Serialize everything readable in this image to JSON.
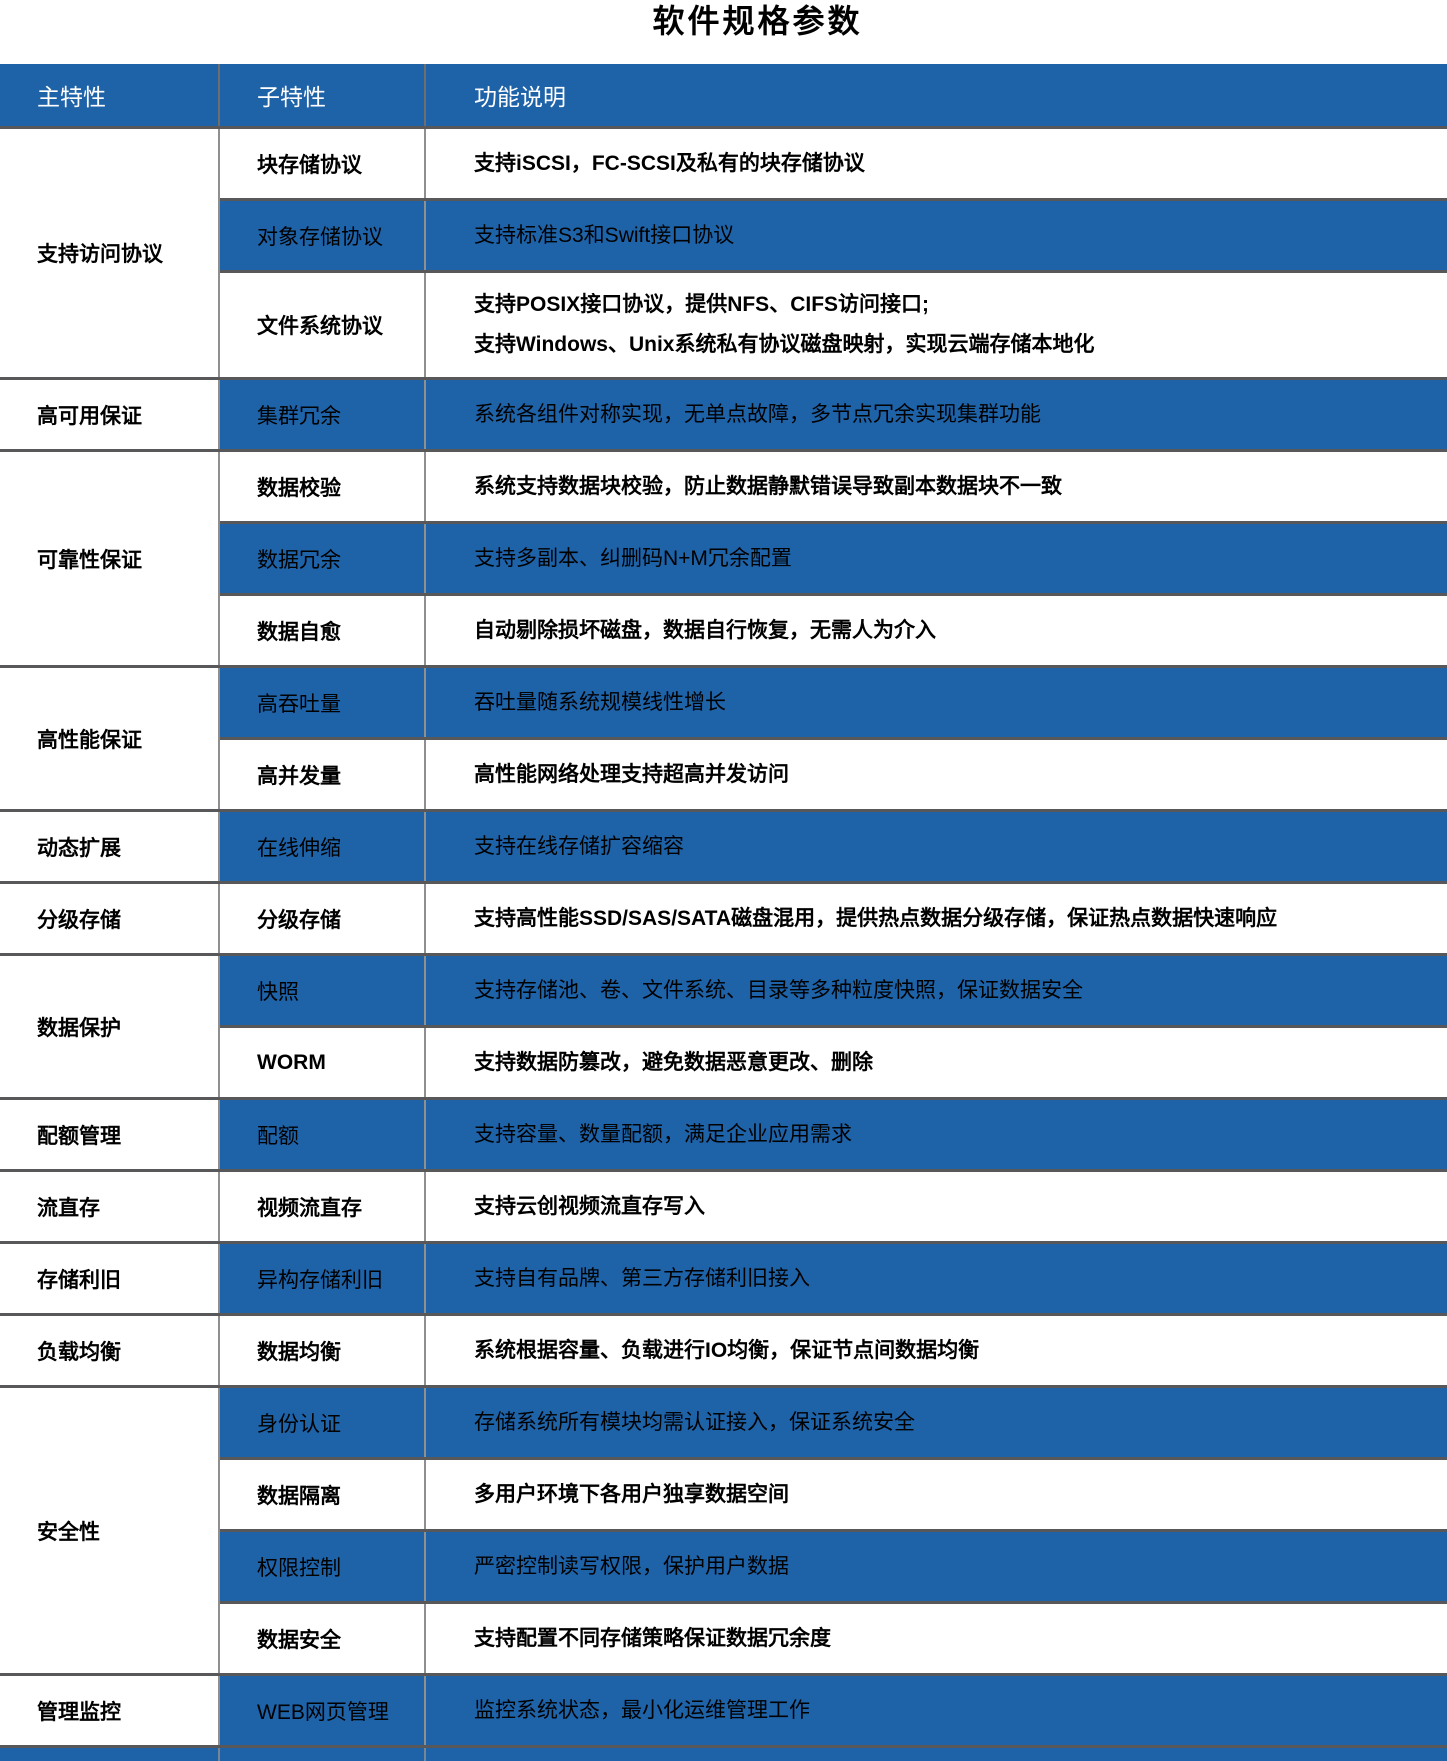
{
  "title": "软件规格参数",
  "colors": {
    "header_bg": "#1E62A8",
    "row_highlight_bg": "#1E62A8",
    "row_plain_bg": "#FFFFFF",
    "header_text": "#FFFFFF",
    "body_text": "#000000",
    "section_divider": "#58585A",
    "column_divider": "#8F8F8F"
  },
  "header": {
    "col_main": "主特性",
    "col_sub": "子特性",
    "col_desc": "功能说明"
  },
  "sections": [
    {
      "main": "支持访问协议",
      "rows": [
        {
          "sub": "块存储协议",
          "highlight": false,
          "desc": [
            "支持iSCSI，FC-SCSI及私有的块存储协议"
          ]
        },
        {
          "sub": "对象存储协议",
          "highlight": true,
          "desc": [
            "支持标准S3和Swift接口协议"
          ]
        },
        {
          "sub": "文件系统协议",
          "highlight": false,
          "desc": [
            "支持POSIX接口协议，提供NFS、CIFS访问接口;",
            "支持Windows、Unix系统私有协议磁盘映射，实现云端存储本地化"
          ]
        }
      ]
    },
    {
      "main": "高可用保证",
      "rows": [
        {
          "sub": "集群冗余",
          "highlight": true,
          "desc": [
            "系统各组件对称实现，无单点故障，多节点冗余实现集群功能"
          ]
        }
      ]
    },
    {
      "main": "可靠性保证",
      "rows": [
        {
          "sub": "数据校验",
          "highlight": false,
          "desc": [
            "系统支持数据块校验，防止数据静默错误导致副本数据块不一致"
          ]
        },
        {
          "sub": "数据冗余",
          "highlight": true,
          "desc": [
            "支持多副本、纠删码N+M冗余配置"
          ]
        },
        {
          "sub": "数据自愈",
          "highlight": false,
          "desc": [
            "自动剔除损坏磁盘，数据自行恢复，无需人为介入"
          ]
        }
      ]
    },
    {
      "main": "高性能保证",
      "rows": [
        {
          "sub": "高吞吐量",
          "highlight": true,
          "desc": [
            "吞吐量随系统规模线性增长"
          ]
        },
        {
          "sub": "高并发量",
          "highlight": false,
          "desc": [
            "高性能网络处理支持超高并发访问"
          ]
        }
      ]
    },
    {
      "main": "动态扩展",
      "rows": [
        {
          "sub": "在线伸缩",
          "highlight": true,
          "desc": [
            "支持在线存储扩容缩容"
          ]
        }
      ]
    },
    {
      "main": "分级存储",
      "rows": [
        {
          "sub": "分级存储",
          "highlight": false,
          "desc": [
            "支持高性能SSD/SAS/SATA磁盘混用，提供热点数据分级存储，保证热点数据快速响应"
          ]
        }
      ]
    },
    {
      "main": "数据保护",
      "rows": [
        {
          "sub": "快照",
          "highlight": true,
          "desc": [
            "支持存储池、卷、文件系统、目录等多种粒度快照，保证数据安全"
          ]
        },
        {
          "sub": "WORM",
          "highlight": false,
          "desc": [
            "支持数据防篡改，避免数据恶意更改、删除"
          ]
        }
      ]
    },
    {
      "main": "配额管理",
      "rows": [
        {
          "sub": "配额",
          "highlight": true,
          "desc": [
            "支持容量、数量配额，满足企业应用需求"
          ]
        }
      ]
    },
    {
      "main": "流直存",
      "rows": [
        {
          "sub": "视频流直存",
          "highlight": false,
          "desc": [
            "支持云创视频流直存写入"
          ]
        }
      ]
    },
    {
      "main": "存储利旧",
      "rows": [
        {
          "sub": "异构存储利旧",
          "highlight": true,
          "desc": [
            "支持自有品牌、第三方存储利旧接入"
          ]
        }
      ]
    },
    {
      "main": "负载均衡",
      "rows": [
        {
          "sub": "数据均衡",
          "highlight": false,
          "desc": [
            "系统根据容量、负载进行IO均衡，保证节点间数据均衡"
          ]
        }
      ]
    },
    {
      "main": "安全性",
      "rows": [
        {
          "sub": "身份认证",
          "highlight": true,
          "desc": [
            "存储系统所有模块均需认证接入，保证系统安全"
          ]
        },
        {
          "sub": "数据隔离",
          "highlight": false,
          "desc": [
            "多用户环境下各用户独享数据空间"
          ]
        },
        {
          "sub": "权限控制",
          "highlight": true,
          "desc": [
            "严密控制读写权限，保护用户数据"
          ]
        },
        {
          "sub": "数据安全",
          "highlight": false,
          "desc": [
            "支持配置不同存储策略保证数据冗余度"
          ]
        }
      ]
    },
    {
      "main": "管理监控",
      "rows": [
        {
          "sub": "WEB网页管理",
          "highlight": true,
          "desc": [
            "监控系统状态，最小化运维管理工作"
          ]
        }
      ]
    }
  ]
}
